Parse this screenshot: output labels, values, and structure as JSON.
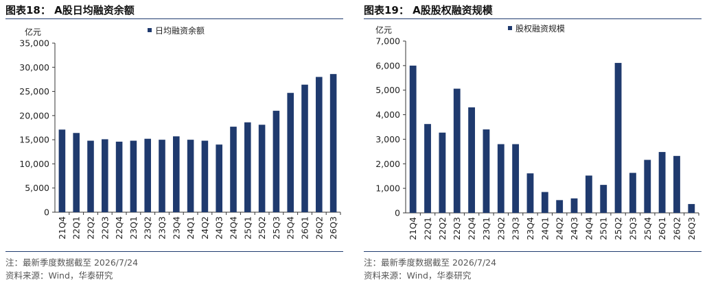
{
  "panels": [
    {
      "title": "图表18：  A股日均融资余额",
      "note": "注：最新季度数据截至 2026/7/24",
      "source": "资料来源：Wind，华泰研究",
      "color": "#1f3a6e"
    },
    {
      "title": "图表19：  A股股权融资规模",
      "note": "注：最新季度数据截至 2026/7/24",
      "source": "资料来源：Wind，华泰研究",
      "color": "#1f3a6e"
    }
  ],
  "chart_data": [
    {
      "type": "bar",
      "title": "",
      "xlabel": "",
      "ylabel": "亿元",
      "ylim": [
        0,
        35000
      ],
      "yticks": [
        0,
        5000,
        10000,
        15000,
        20000,
        25000,
        30000,
        35000
      ],
      "ytick_labels": [
        "0",
        "5,000",
        "10,000",
        "15,000",
        "20,000",
        "25,000",
        "30,000",
        "35,000"
      ],
      "legend_position": "top",
      "grid": false,
      "categories": [
        "21Q4",
        "22Q1",
        "22Q2",
        "22Q3",
        "22Q4",
        "23Q1",
        "23Q2",
        "23Q3",
        "23Q4",
        "24Q1",
        "24Q2",
        "24Q3",
        "24Q4",
        "25Q1",
        "25Q2",
        "25Q3",
        "25Q4",
        "26Q1",
        "26Q2",
        "26Q3"
      ],
      "series": [
        {
          "name": "日均融资余额",
          "color": "#1f3a6e",
          "values": [
            17100,
            16400,
            14800,
            15100,
            14600,
            14800,
            15200,
            15000,
            15700,
            15000,
            14800,
            14000,
            17700,
            18600,
            18100,
            21000,
            24700,
            26400,
            28000,
            28600
          ]
        }
      ]
    },
    {
      "type": "bar",
      "title": "",
      "xlabel": "",
      "ylabel": "亿元",
      "ylim": [
        0,
        7000
      ],
      "yticks": [
        0,
        1000,
        2000,
        3000,
        4000,
        5000,
        6000,
        7000
      ],
      "ytick_labels": [
        "0",
        "1,000",
        "2,000",
        "3,000",
        "4,000",
        "5,000",
        "6,000",
        "7,000"
      ],
      "legend_position": "top",
      "grid": false,
      "categories": [
        "21Q4",
        "22Q1",
        "22Q2",
        "22Q3",
        "22Q4",
        "23Q1",
        "23Q2",
        "23Q3",
        "23Q4",
        "24Q1",
        "24Q2",
        "24Q3",
        "24Q4",
        "25Q1",
        "25Q2",
        "25Q3",
        "25Q4",
        "26Q1",
        "26Q2",
        "26Q3"
      ],
      "series": [
        {
          "name": "股权融资规模",
          "color": "#1f3a6e",
          "values": [
            6000,
            3620,
            3270,
            5060,
            4300,
            3400,
            2800,
            2800,
            1610,
            850,
            520,
            590,
            1520,
            1140,
            6110,
            1630,
            2160,
            2480,
            2320,
            360
          ]
        }
      ]
    }
  ]
}
